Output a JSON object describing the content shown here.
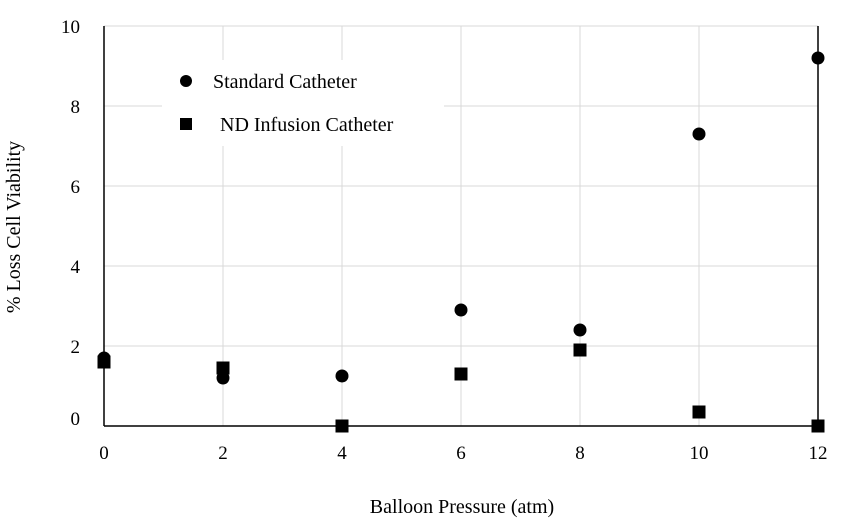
{
  "chart_data": {
    "type": "scatter",
    "title": "",
    "xlabel": "Balloon Pressure (atm)",
    "ylabel": "% Loss Cell Viability",
    "xlim": [
      0,
      12
    ],
    "ylim": [
      0,
      10
    ],
    "x_ticks": [
      "0",
      "2",
      "4",
      "6",
      "8",
      "10",
      "12"
    ],
    "y_ticks": [
      "0",
      "2",
      "4",
      "6",
      "8",
      "10"
    ],
    "grid": true,
    "legend_position": "top-left",
    "series": [
      {
        "name": "Standard Catheter",
        "marker": "circle",
        "color": "#000000",
        "points": [
          {
            "x": 0,
            "y": 1.7
          },
          {
            "x": 2,
            "y": 1.2
          },
          {
            "x": 4,
            "y": 1.25
          },
          {
            "x": 6,
            "y": 2.9
          },
          {
            "x": 8,
            "y": 2.4
          },
          {
            "x": 10,
            "y": 7.3
          },
          {
            "x": 12,
            "y": 9.2
          }
        ]
      },
      {
        "name": "ND Infusion Catheter",
        "marker": "square",
        "color": "#000000",
        "points": [
          {
            "x": 0,
            "y": 1.6
          },
          {
            "x": 2,
            "y": 1.45
          },
          {
            "x": 4,
            "y": 0.0
          },
          {
            "x": 6,
            "y": 1.3
          },
          {
            "x": 8,
            "y": 1.9
          },
          {
            "x": 10,
            "y": 0.35
          },
          {
            "x": 12,
            "y": 0.0
          }
        ]
      }
    ]
  }
}
